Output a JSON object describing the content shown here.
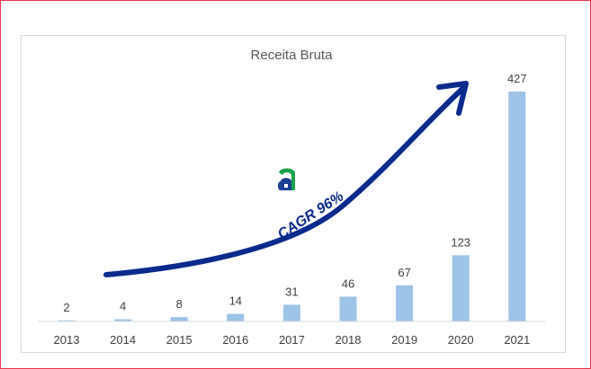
{
  "chart_data": {
    "type": "bar",
    "title": "Receita Bruta",
    "xlabel": "",
    "ylabel": "",
    "categories": [
      "2013",
      "2014",
      "2015",
      "2016",
      "2017",
      "2018",
      "2019",
      "2020",
      "2021"
    ],
    "values": [
      2,
      4,
      8,
      14,
      31,
      46,
      67,
      123,
      427
    ],
    "ylim": [
      0,
      427
    ],
    "grid": false,
    "legend": "none",
    "bar_color": "#9dc3e6",
    "annotations": {
      "cagr_label": "CAGR 96%",
      "arrow_color": "#0a2a8c"
    },
    "logo": {
      "name": "company-logo-icon",
      "colors": [
        "#1aa34a",
        "#1c3f94"
      ]
    }
  }
}
